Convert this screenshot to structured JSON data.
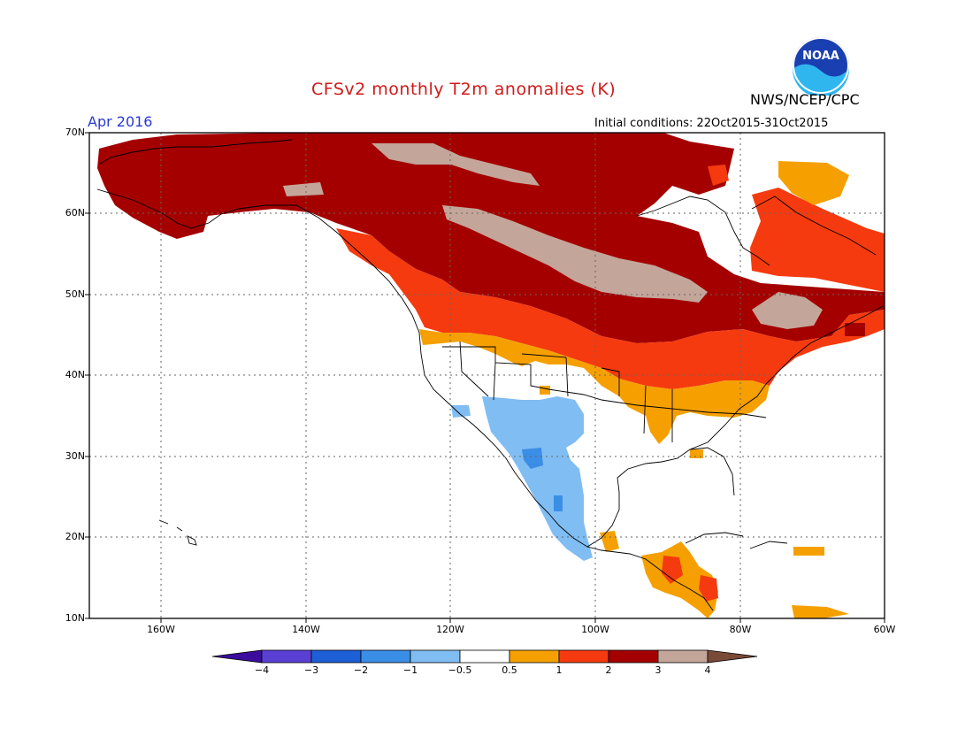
{
  "header": {
    "title": "CFSv2 monthly T2m anomalies (K)",
    "org": "NWS/NCEP/CPC",
    "logo_text": "NOAA",
    "month": "Apr 2016",
    "initial_conditions": "Initial conditions: 22Oct2015-31Oct2015"
  },
  "axes": {
    "lat_labels": [
      "70N",
      "60N",
      "50N",
      "40N",
      "30N",
      "20N",
      "10N"
    ],
    "lon_labels": [
      "160W",
      "140W",
      "120W",
      "100W",
      "80W",
      "60W"
    ]
  },
  "colorbar": {
    "labels": [
      "−4",
      "−3",
      "−2",
      "−1",
      "−0.5",
      "0.5",
      "1",
      "2",
      "3",
      "4"
    ],
    "colors": [
      "#3a0d9c",
      "#5a3fd4",
      "#1c5fd6",
      "#3b8ee6",
      "#80bdf2",
      "#ffffff",
      "#f5a000",
      "#f53a0f",
      "#a40000",
      "#c4a59a",
      "#7a4a38"
    ]
  },
  "map_data": {
    "extent": {
      "lon_min": -170,
      "lon_max": -60,
      "lat_min": 10,
      "lat_max": 70
    },
    "regions": [
      {
        "name": "alaska-yukon",
        "category": "3",
        "color": "#a40000"
      },
      {
        "name": "northern-canada",
        "category": "3",
        "color": "#a40000"
      },
      {
        "name": "prairies-band",
        "category": "4",
        "color": "#c4a59a"
      },
      {
        "name": "pacific-northwest",
        "category": "2",
        "color": "#f53a0f"
      },
      {
        "name": "northern-us",
        "category": "2",
        "color": "#f53a0f"
      },
      {
        "name": "eastern-canada",
        "category": "2",
        "color": "#f53a0f"
      },
      {
        "name": "southern-plains-southeast",
        "category": "1",
        "color": "#f5a000"
      },
      {
        "name": "southwest-mexico",
        "category": "-0.5",
        "color": "#80bdf2"
      },
      {
        "name": "central-america",
        "category": "1",
        "color": "#f5a000"
      }
    ]
  }
}
